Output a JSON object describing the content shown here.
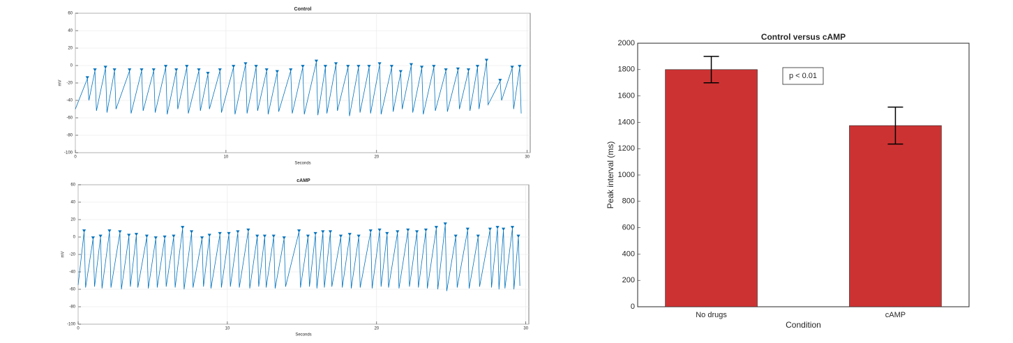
{
  "chart_data": [
    {
      "type": "line",
      "title": "Control",
      "xlabel": "Seconds",
      "ylabel": "mV",
      "xlim": [
        0,
        30.2
      ],
      "ylim": [
        -100,
        60
      ],
      "xticks": [
        0,
        10,
        20,
        30
      ],
      "yticks": [
        -100,
        -80,
        -60,
        -40,
        -20,
        0,
        20,
        40,
        60
      ],
      "grid": true,
      "series": [
        {
          "color": "#0072bd",
          "x": [
            0,
            0.8,
            0.9,
            1.3,
            1.4,
            2.0,
            2.1,
            2.6,
            2.7,
            3.6,
            3.7,
            4.4,
            4.5,
            5.2,
            5.3,
            6.0,
            6.1,
            6.7,
            6.8,
            7.4,
            7.5,
            8.2,
            8.3,
            8.8,
            8.9,
            9.6,
            9.7,
            10.5,
            10.6,
            11.3,
            11.4,
            12.0,
            12.1,
            12.7,
            12.8,
            13.4,
            13.5,
            14.3,
            14.4,
            15.1,
            15.2,
            16.0,
            16.1,
            16.6,
            16.7,
            17.3,
            17.4,
            18.1,
            18.2,
            18.8,
            18.9,
            19.5,
            19.6,
            20.2,
            20.3,
            21.0,
            21.1,
            21.6,
            21.7,
            22.3,
            22.4,
            23.0,
            23.1,
            23.8,
            23.9,
            24.6,
            24.7,
            25.4,
            25.5,
            26.1,
            26.2,
            26.7,
            26.8,
            27.3,
            27.4,
            28.2,
            28.3,
            29.0,
            29.1,
            29.5,
            29.6
          ],
          "values": [
            -50,
            -15,
            -40,
            -6,
            -52,
            -3,
            -54,
            -6,
            -50,
            -6,
            -55,
            -6,
            -52,
            -6,
            -54,
            -2,
            -56,
            -6,
            -50,
            -2,
            -55,
            -6,
            -52,
            -10,
            -50,
            -6,
            -54,
            -2,
            -56,
            1,
            -55,
            -2,
            -52,
            -6,
            -56,
            -8,
            -53,
            -6,
            -55,
            -2,
            -56,
            4,
            -57,
            -2,
            -55,
            1,
            -52,
            -2,
            -58,
            -2,
            -54,
            -2,
            -55,
            1,
            -56,
            -2,
            -53,
            -8,
            -50,
            0,
            -54,
            -3,
            -56,
            -2,
            -52,
            -6,
            -53,
            -5,
            -50,
            -6,
            -52,
            -2,
            -50,
            5,
            -45,
            -18,
            -40,
            -3,
            -50,
            -2,
            -55
          ]
        },
        {
          "color": "#0072bd",
          "marker": "v",
          "x": [
            0.8,
            1.3,
            2.0,
            2.6,
            3.6,
            4.4,
            5.2,
            6.0,
            6.7,
            7.4,
            8.2,
            8.8,
            9.6,
            10.5,
            11.3,
            12.0,
            12.7,
            13.4,
            14.3,
            15.1,
            16.0,
            16.6,
            17.3,
            18.1,
            18.8,
            19.5,
            20.2,
            21.0,
            21.6,
            22.3,
            23.0,
            23.8,
            24.6,
            25.4,
            26.1,
            26.7,
            27.3,
            28.2,
            29.0,
            29.5
          ],
          "values": [
            -15,
            -6,
            -3,
            -6,
            -6,
            -6,
            -6,
            -2,
            -6,
            -2,
            -6,
            -10,
            -6,
            -2,
            1,
            -2,
            -6,
            -8,
            -6,
            -2,
            4,
            -2,
            1,
            -2,
            -2,
            -2,
            1,
            -2,
            -8,
            0,
            -3,
            -2,
            -6,
            -5,
            -6,
            -2,
            5,
            -18,
            -3,
            -2
          ]
        }
      ]
    },
    {
      "type": "line",
      "title": "cAMP",
      "xlabel": "Seconds",
      "ylabel": "mV",
      "xlim": [
        0,
        30.2
      ],
      "ylim": [
        -100,
        60
      ],
      "xticks": [
        0,
        10,
        20,
        30
      ],
      "yticks": [
        -100,
        -80,
        -60,
        -40,
        -20,
        0,
        20,
        40,
        60
      ],
      "grid": true,
      "series": [
        {
          "color": "#0072bd",
          "x": [
            0,
            0.4,
            0.5,
            1.0,
            1.1,
            1.5,
            1.6,
            2.1,
            2.2,
            2.8,
            2.9,
            3.4,
            3.5,
            3.9,
            4.0,
            4.6,
            4.7,
            5.2,
            5.3,
            5.8,
            5.9,
            6.4,
            6.5,
            7.0,
            7.1,
            7.6,
            7.7,
            8.3,
            8.4,
            8.8,
            8.9,
            9.5,
            9.6,
            10.1,
            10.2,
            10.7,
            10.8,
            11.4,
            11.5,
            12.0,
            12.1,
            12.5,
            12.6,
            13.1,
            13.2,
            13.8,
            13.9,
            14.8,
            14.9,
            15.4,
            15.5,
            15.9,
            16.0,
            16.4,
            16.5,
            16.9,
            17.0,
            17.6,
            17.7,
            18.2,
            18.3,
            18.8,
            18.9,
            19.6,
            19.7,
            20.2,
            20.3,
            20.7,
            20.8,
            21.4,
            21.5,
            22.1,
            22.2,
            22.7,
            22.8,
            23.3,
            23.4,
            24.0,
            24.1,
            24.6,
            24.7,
            25.3,
            25.4,
            26.1,
            26.2,
            26.8,
            26.9,
            27.6,
            27.7,
            28.1,
            28.2,
            28.5,
            28.6,
            29.1,
            29.2,
            29.5,
            29.6
          ],
          "values": [
            -55,
            6,
            -58,
            -2,
            -57,
            0,
            -59,
            6,
            -58,
            5,
            -60,
            1,
            -57,
            2,
            -58,
            0,
            -59,
            -2,
            -58,
            -1,
            -57,
            0,
            -58,
            10,
            -60,
            5,
            -58,
            -2,
            -57,
            1,
            -59,
            3,
            -58,
            3,
            -57,
            5,
            -58,
            7,
            -59,
            0,
            -57,
            0,
            -58,
            0,
            -59,
            -2,
            -57,
            6,
            -58,
            0,
            -57,
            3,
            -59,
            5,
            -58,
            5,
            -57,
            0,
            -58,
            2,
            -59,
            0,
            -58,
            6,
            -59,
            7,
            -57,
            3,
            -58,
            5,
            -59,
            7,
            -57,
            5,
            -58,
            7,
            -59,
            10,
            -60,
            14,
            -62,
            0,
            -58,
            8,
            -59,
            0,
            -57,
            8,
            -58,
            10,
            -60,
            8,
            -59,
            10,
            -60,
            0,
            -56
          ]
        },
        {
          "color": "#0072bd",
          "marker": "v",
          "x": [
            0.4,
            1.0,
            1.5,
            2.1,
            2.8,
            3.4,
            3.9,
            4.6,
            5.2,
            5.8,
            6.4,
            7.0,
            7.6,
            8.3,
            8.8,
            9.5,
            10.1,
            10.7,
            11.4,
            12.0,
            12.5,
            13.1,
            13.8,
            14.8,
            15.4,
            15.9,
            16.4,
            16.9,
            17.6,
            18.2,
            18.8,
            19.6,
            20.2,
            20.7,
            21.4,
            22.1,
            22.7,
            23.3,
            24.0,
            24.6,
            25.3,
            26.1,
            26.8,
            27.6,
            28.1,
            28.5,
            29.1,
            29.5
          ],
          "values": [
            6,
            -2,
            0,
            6,
            5,
            1,
            2,
            0,
            -2,
            -1,
            0,
            10,
            5,
            -2,
            1,
            3,
            3,
            5,
            7,
            0,
            0,
            0,
            -2,
            6,
            0,
            3,
            5,
            5,
            0,
            2,
            0,
            6,
            7,
            3,
            5,
            7,
            5,
            7,
            10,
            14,
            0,
            8,
            0,
            8,
            10,
            8,
            10,
            0
          ]
        }
      ]
    },
    {
      "type": "bar",
      "title": "Control versus cAMP",
      "xlabel": "Condition",
      "ylabel": "Peak interval (ms)",
      "categories": [
        "No drugs",
        "cAMP"
      ],
      "values": [
        1800,
        1375
      ],
      "errors": [
        100,
        140
      ],
      "color": "#cd3232",
      "ylim": [
        0,
        2000
      ],
      "yticks": [
        0,
        200,
        400,
        600,
        800,
        1000,
        1200,
        1400,
        1600,
        1800,
        2000
      ],
      "annotation": "p < 0.01"
    }
  ]
}
